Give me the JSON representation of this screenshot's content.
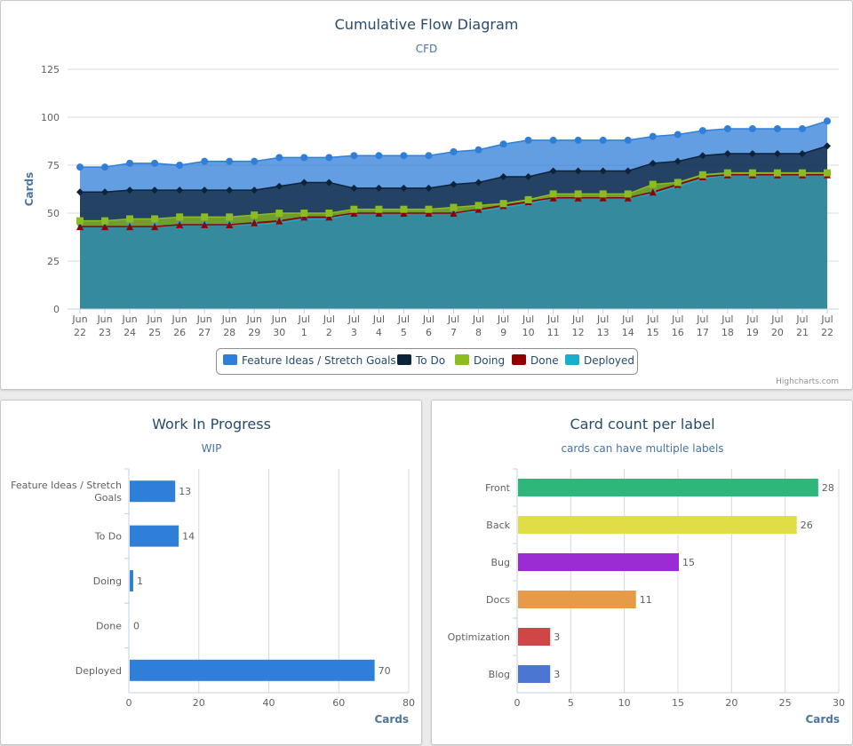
{
  "cfd_chart": {
    "title": "Cumulative Flow Diagram",
    "subtitle": "CFD",
    "ylabel": "Cards",
    "credit": "Highcharts.com"
  },
  "wip_chart": {
    "title": "Work In Progress",
    "subtitle": "WIP",
    "xlabel": "Cards"
  },
  "label_chart": {
    "title": "Card count per label",
    "subtitle": "cards can have multiple labels",
    "xlabel": "Cards"
  },
  "chart_data": [
    {
      "type": "area",
      "title": "Cumulative Flow Diagram",
      "subtitle": "CFD",
      "ylabel": "Cards",
      "ylim": [
        0,
        125
      ],
      "yticks": [
        0,
        25,
        50,
        75,
        100,
        125
      ],
      "grid": true,
      "legend": "bottom-center",
      "categories": [
        [
          "Jun",
          "22"
        ],
        [
          "Jun",
          "23"
        ],
        [
          "Jun",
          "24"
        ],
        [
          "Jun",
          "25"
        ],
        [
          "Jun",
          "26"
        ],
        [
          "Jun",
          "27"
        ],
        [
          "Jun",
          "28"
        ],
        [
          "Jun",
          "29"
        ],
        [
          "Jun",
          "30"
        ],
        [
          "Jul",
          "1"
        ],
        [
          "Jul",
          "2"
        ],
        [
          "Jul",
          "3"
        ],
        [
          "Jul",
          "4"
        ],
        [
          "Jul",
          "5"
        ],
        [
          "Jul",
          "6"
        ],
        [
          "Jul",
          "7"
        ],
        [
          "Jul",
          "8"
        ],
        [
          "Jul",
          "9"
        ],
        [
          "Jul",
          "10"
        ],
        [
          "Jul",
          "11"
        ],
        [
          "Jul",
          "12"
        ],
        [
          "Jul",
          "13"
        ],
        [
          "Jul",
          "14"
        ],
        [
          "Jul",
          "15"
        ],
        [
          "Jul",
          "16"
        ],
        [
          "Jul",
          "17"
        ],
        [
          "Jul",
          "18"
        ],
        [
          "Jul",
          "19"
        ],
        [
          "Jul",
          "20"
        ],
        [
          "Jul",
          "21"
        ],
        [
          "Jul",
          "22"
        ]
      ],
      "series_colors": {
        "Feature Ideas / Stretch Goals": "#2f7ed8",
        "To Do": "#0d233a",
        "Doing": "#8bbc21",
        "Done": "#910000",
        "Deployed": "#1aadce"
      },
      "series": [
        {
          "name": "Deployed",
          "marker": "triangle-down",
          "values": [
            43,
            43,
            43,
            43,
            44,
            44,
            44,
            44,
            45,
            47,
            47,
            50,
            50,
            50,
            50,
            50,
            51,
            53,
            55,
            58,
            58,
            58,
            58,
            60,
            64,
            68,
            70,
            70,
            70,
            70,
            70
          ]
        },
        {
          "name": "Done",
          "marker": "triangle",
          "values": [
            43,
            43,
            43,
            43,
            44,
            44,
            44,
            45,
            46,
            48,
            48,
            50,
            50,
            50,
            50,
            50,
            52,
            54,
            56,
            58,
            58,
            58,
            58,
            61,
            65,
            69,
            70,
            70,
            70,
            70,
            70
          ]
        },
        {
          "name": "Doing",
          "marker": "square",
          "values": [
            46,
            46,
            47,
            47,
            48,
            48,
            48,
            49,
            50,
            50,
            50,
            52,
            52,
            52,
            52,
            53,
            54,
            55,
            57,
            60,
            60,
            60,
            60,
            65,
            66,
            70,
            71,
            71,
            71,
            71,
            71
          ]
        },
        {
          "name": "To Do",
          "marker": "diamond",
          "values": [
            61,
            61,
            62,
            62,
            62,
            62,
            62,
            62,
            64,
            66,
            66,
            63,
            63,
            63,
            63,
            65,
            66,
            69,
            69,
            72,
            72,
            72,
            72,
            76,
            77,
            80,
            81,
            81,
            81,
            81,
            85
          ]
        },
        {
          "name": "Feature Ideas / Stretch Goals",
          "marker": "circle",
          "values": [
            74,
            74,
            76,
            76,
            75,
            77,
            77,
            77,
            79,
            79,
            79,
            80,
            80,
            80,
            80,
            82,
            83,
            86,
            88,
            88,
            88,
            88,
            88,
            90,
            91,
            93,
            94,
            94,
            94,
            94,
            98
          ]
        }
      ],
      "legend_order": [
        "Feature Ideas / Stretch Goals",
        "To Do",
        "Doing",
        "Done",
        "Deployed"
      ]
    },
    {
      "type": "bar",
      "title": "Work In Progress",
      "subtitle": "WIP",
      "xlabel": "Cards",
      "xlim": [
        0,
        80
      ],
      "xticks": [
        0,
        20,
        40,
        60,
        80
      ],
      "grid": true,
      "categories": [
        [
          "Feature Ideas / Stretch",
          "Goals"
        ],
        [
          "To Do"
        ],
        [
          "Doing"
        ],
        [
          "Done"
        ],
        [
          "Deployed"
        ]
      ],
      "values": [
        13,
        14,
        1,
        0,
        70
      ],
      "color": "#2f7ed8"
    },
    {
      "type": "bar",
      "title": "Card count per label",
      "subtitle": "cards can have multiple labels",
      "xlabel": "Cards",
      "xlim": [
        0,
        30
      ],
      "xticks": [
        0,
        5,
        10,
        15,
        20,
        25,
        30
      ],
      "grid": true,
      "categories": [
        [
          "Front"
        ],
        [
          "Back"
        ],
        [
          "Bug"
        ],
        [
          "Docs"
        ],
        [
          "Optimization"
        ],
        [
          "Blog"
        ]
      ],
      "values": [
        28,
        26,
        15,
        11,
        3,
        3
      ],
      "colors": [
        "#2db77a",
        "#dfdf45",
        "#9b2bd2",
        "#e79a48",
        "#d04646",
        "#4b77d2"
      ]
    }
  ]
}
